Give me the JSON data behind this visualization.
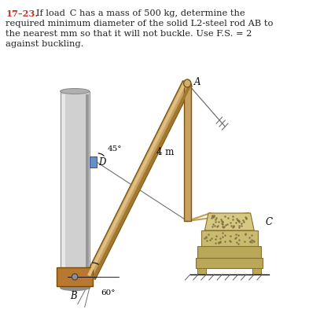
{
  "title_number": "17–23.",
  "bg_color": "#ffffff",
  "text_color": "#231f20",
  "title_color": "#c0392b",
  "rod_color": "#c8a060",
  "rod_highlight": "#dfc080",
  "rod_shadow": "#a07830",
  "rod_edge": "#7a5510",
  "steel_light": "#d0d0d0",
  "steel_mid": "#b0b0b0",
  "steel_dark": "#888888",
  "brown_collar": "#b87830",
  "brown_dark": "#7a4800",
  "blue_bracket": "#6890c0",
  "blue_bracket_dark": "#3050a0",
  "block_top": "#d4c882",
  "block_mid": "#c8bc70",
  "block_base": "#b8a858",
  "block_edge": "#887030",
  "ground_color": "#606060",
  "cable_color": "#c0a050",
  "thin_line": "#707070",
  "label_A": "A",
  "label_B": "B",
  "label_C": "C",
  "label_D": "D",
  "label_4m": "4 m",
  "label_45": "45°",
  "label_60": "60°",
  "problem_lines": [
    [
      "17–23.",
      true,
      "#c0392b",
      8,
      414
    ],
    [
      "   If load C has a mass of 500 kg, determine the",
      false,
      "#231f20",
      8,
      414
    ],
    [
      "required minimum diameter of the solid L2-steel rod AB to",
      false,
      "#231f20",
      8,
      401
    ],
    [
      "the nearest mm so that it will not buckle. Use F.S. = 2",
      false,
      "#231f20",
      8,
      388
    ],
    [
      "against buckling.",
      false,
      "#231f20",
      8,
      375
    ]
  ]
}
